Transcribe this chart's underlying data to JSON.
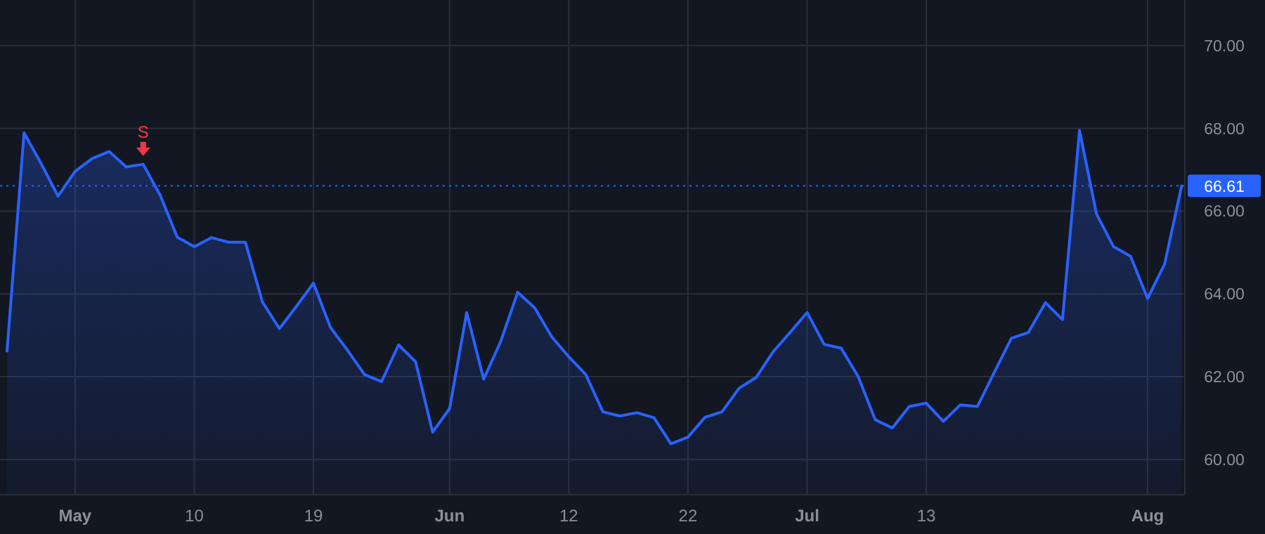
{
  "chart_data": {
    "type": "area",
    "categories": [
      null,
      null,
      null,
      null,
      "May",
      null,
      null,
      null,
      null,
      null,
      null,
      "10",
      null,
      null,
      null,
      null,
      null,
      null,
      "19",
      null,
      null,
      null,
      null,
      null,
      null,
      null,
      "Jun",
      null,
      null,
      null,
      null,
      null,
      null,
      "12",
      null,
      null,
      null,
      null,
      null,
      null,
      "22",
      null,
      null,
      null,
      null,
      null,
      null,
      "Jul",
      null,
      null,
      null,
      null,
      null,
      null,
      "13",
      null,
      null,
      null,
      null,
      null,
      null,
      null,
      null,
      null,
      null,
      null,
      null,
      "Aug",
      null,
      null
    ],
    "series": [
      {
        "color": "#2962ff",
        "values": [
          62.62,
          67.89,
          67.15,
          66.36,
          66.96,
          67.27,
          67.44,
          67.07,
          67.13,
          66.38,
          65.37,
          65.14,
          65.36,
          65.25,
          65.25,
          63.81,
          63.16,
          63.7,
          64.26,
          63.19,
          62.64,
          62.05,
          61.88,
          62.77,
          62.36,
          60.66,
          61.23,
          63.55,
          61.94,
          62.85,
          64.04,
          63.66,
          62.96,
          62.48,
          62.05,
          61.15,
          61.05,
          61.13,
          61.01,
          60.38,
          60.54,
          61.02,
          61.15,
          61.72,
          61.98,
          62.6,
          63.07,
          63.55,
          62.78,
          62.69,
          62.0,
          60.96,
          60.76,
          61.28,
          61.36,
          60.92,
          61.32,
          61.28,
          62.11,
          62.93,
          63.07,
          63.79,
          63.38,
          67.95,
          65.93,
          65.14,
          64.91,
          63.89,
          64.72,
          66.61
        ]
      }
    ],
    "ylim": [
      59.15,
      71.1
    ],
    "yticks": [
      {
        "value": 60,
        "label": "60.00"
      },
      {
        "value": 62,
        "label": "62.00"
      },
      {
        "value": 64,
        "label": "64.00"
      },
      {
        "value": 66,
        "label": "66.00"
      },
      {
        "value": 68,
        "label": "68.00"
      },
      {
        "value": 70,
        "label": "70.00"
      }
    ],
    "grid": true,
    "ref_lines": [
      {
        "axis": "y",
        "value": 66.61,
        "label": "66.61",
        "color": "#2962ff",
        "line_style": "dotted"
      }
    ],
    "annotations": [
      {
        "text": "S",
        "y": 67.13
      }
    ]
  }
}
